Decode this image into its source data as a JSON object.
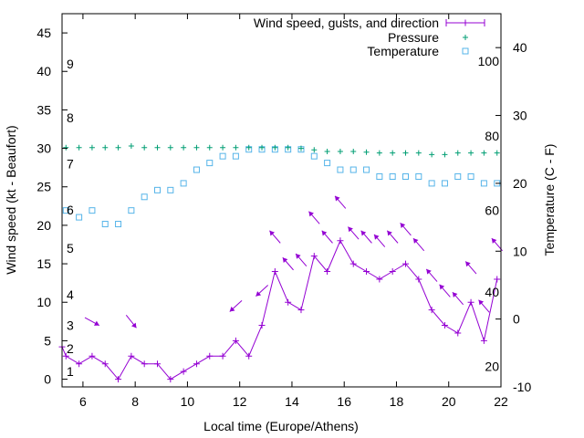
{
  "chart_data": {
    "type": "line",
    "xlabel": "Local time (Europe/Athens)",
    "ylabel": "Wind speed (kt - Beaufort)",
    "y2label": "Temperature (C - F)",
    "xlim": [
      5.2,
      22
    ],
    "ylim": [
      -1,
      47.5
    ],
    "y2lim": [
      -10,
      45
    ],
    "x_ticks": [
      6,
      8,
      10,
      12,
      14,
      16,
      18,
      20,
      22
    ],
    "y_ticks": [
      0,
      5,
      10,
      15,
      20,
      25,
      30,
      35,
      40,
      45
    ],
    "y2_ticks": [
      -10,
      0,
      10,
      20,
      30,
      40
    ],
    "beaufort_labels": [
      {
        "label": "1",
        "y": 1
      },
      {
        "label": "2",
        "y": 4
      },
      {
        "label": "3",
        "y": 7
      },
      {
        "label": "4",
        "y": 11
      },
      {
        "label": "5",
        "y": 17
      },
      {
        "label": "6",
        "y": 22
      },
      {
        "label": "7",
        "y": 28
      },
      {
        "label": "8",
        "y": 34
      },
      {
        "label": "9",
        "y": 41
      }
    ],
    "fahrenheit_labels": [
      {
        "label": "20",
        "y2": -7
      },
      {
        "label": "40",
        "y2": 4
      },
      {
        "label": "60",
        "y2": 16
      },
      {
        "label": "80",
        "y2": 27
      },
      {
        "label": "100",
        "y2": 38
      }
    ],
    "grid": false,
    "legend": "top-right",
    "legend_entries": [
      "Wind speed, gusts, and direction",
      "Pressure",
      "Temperature"
    ],
    "colors": {
      "wind": "#9400d3",
      "pressure": "#009e73",
      "temperature": "#56b4e9",
      "axis": "#000000"
    },
    "series": [
      {
        "name": "Wind speed, gusts, and direction",
        "axis": "y",
        "x": [
          5.2,
          5.35,
          5.85,
          6.35,
          6.85,
          7.35,
          7.85,
          8.35,
          8.85,
          9.35,
          9.85,
          10.35,
          10.85,
          11.35,
          11.85,
          12.35,
          12.85,
          13.35,
          13.85,
          14.35,
          14.85,
          15.35,
          15.85,
          16.35,
          16.85,
          17.35,
          17.85,
          18.35,
          18.85,
          19.35,
          19.85,
          20.35,
          20.85,
          21.35,
          21.85
        ],
        "values": [
          4.2,
          3,
          2,
          3,
          2,
          0,
          3,
          2,
          2,
          0,
          1,
          2,
          3,
          3,
          5,
          3,
          7,
          14,
          10,
          9,
          16,
          14,
          18,
          15,
          14,
          13,
          14,
          15,
          13,
          9,
          7,
          6,
          10,
          5,
          13
        ]
      },
      {
        "name": "Pressure",
        "axis": "y",
        "x": [
          5.35,
          5.85,
          6.35,
          6.85,
          7.35,
          7.85,
          8.35,
          8.85,
          9.35,
          9.85,
          10.35,
          10.85,
          11.35,
          11.85,
          12.35,
          12.85,
          13.35,
          13.85,
          14.35,
          14.85,
          15.35,
          15.85,
          16.35,
          16.85,
          17.35,
          17.85,
          18.35,
          18.85,
          19.35,
          19.85,
          20.35,
          20.85,
          21.35,
          21.85
        ],
        "values": [
          30.1,
          30.1,
          30.1,
          30.1,
          30.1,
          30.3,
          30.1,
          30.1,
          30.1,
          30.1,
          30.1,
          30.1,
          30.1,
          30.1,
          30.1,
          30.1,
          30.1,
          30.1,
          30,
          29.8,
          29.6,
          29.6,
          29.6,
          29.5,
          29.4,
          29.4,
          29.4,
          29.4,
          29.2,
          29.2,
          29.4,
          29.4,
          29.4,
          29.4
        ]
      },
      {
        "name": "Temperature",
        "axis": "y2",
        "x": [
          5.35,
          5.85,
          6.35,
          6.85,
          7.35,
          7.85,
          8.35,
          8.85,
          9.35,
          9.85,
          10.35,
          10.85,
          11.35,
          11.85,
          12.35,
          12.85,
          13.35,
          13.85,
          14.35,
          14.85,
          15.35,
          15.85,
          16.35,
          16.85,
          17.35,
          17.85,
          18.35,
          18.85,
          19.35,
          19.85,
          20.35,
          20.85,
          21.35,
          21.85
        ],
        "values": [
          16,
          15,
          16,
          14,
          14,
          16,
          18,
          19,
          19,
          20,
          22,
          23,
          24,
          24,
          25,
          25,
          25,
          25,
          25,
          24,
          23,
          22,
          22,
          22,
          21,
          21,
          21,
          21,
          20,
          20,
          21,
          21,
          20,
          20
        ]
      }
    ],
    "wind_arrows": [
      {
        "x": 6.35,
        "y": 7.5,
        "dir": 0.5
      },
      {
        "x": 7.85,
        "y": 7.5,
        "dir": 0.9
      },
      {
        "x": 11.85,
        "y": 9.5,
        "dir": 2.4
      },
      {
        "x": 12.85,
        "y": 11.5,
        "dir": 2.4
      },
      {
        "x": 13.35,
        "y": 18.5,
        "dir": 4.0
      },
      {
        "x": 13.85,
        "y": 15.0,
        "dir": 4.0
      },
      {
        "x": 14.35,
        "y": 15.5,
        "dir": 4.0
      },
      {
        "x": 14.85,
        "y": 21.0,
        "dir": 4.0
      },
      {
        "x": 15.35,
        "y": 18.5,
        "dir": 4.0
      },
      {
        "x": 15.85,
        "y": 23.0,
        "dir": 4.0
      },
      {
        "x": 16.35,
        "y": 19.0,
        "dir": 4.0
      },
      {
        "x": 16.85,
        "y": 18.5,
        "dir": 4.0
      },
      {
        "x": 17.35,
        "y": 18.0,
        "dir": 4.0
      },
      {
        "x": 17.85,
        "y": 18.5,
        "dir": 4.0
      },
      {
        "x": 18.35,
        "y": 19.5,
        "dir": 4.0
      },
      {
        "x": 18.85,
        "y": 17.5,
        "dir": 4.0
      },
      {
        "x": 19.35,
        "y": 13.5,
        "dir": 4.0
      },
      {
        "x": 19.85,
        "y": 11.5,
        "dir": 4.0
      },
      {
        "x": 20.35,
        "y": 10.5,
        "dir": 4.0
      },
      {
        "x": 20.85,
        "y": 14.5,
        "dir": 4.0
      },
      {
        "x": 21.35,
        "y": 9.5,
        "dir": 4.0
      },
      {
        "x": 21.85,
        "y": 17.5,
        "dir": 4.0
      }
    ]
  }
}
